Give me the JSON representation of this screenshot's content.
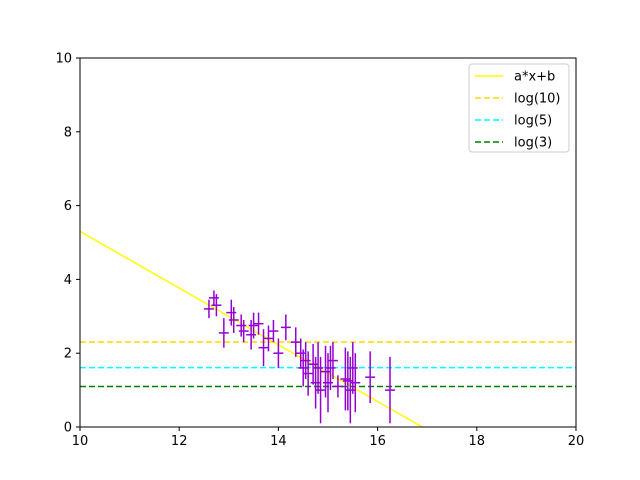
{
  "chart_data": {
    "type": "scatter",
    "title": "",
    "xlabel": "",
    "ylabel": "",
    "xlim": [
      10,
      20
    ],
    "ylim": [
      0,
      10
    ],
    "x_ticks": [
      10,
      12,
      14,
      16,
      18,
      20
    ],
    "y_ticks": [
      0,
      2,
      4,
      6,
      8,
      10
    ],
    "grid": false,
    "legend_position": "top-right",
    "lines": [
      {
        "name": "a*x+b",
        "color": "#ffff00",
        "style": "solid",
        "points": [
          [
            10,
            5.3
          ],
          [
            16.9,
            0
          ]
        ]
      },
      {
        "name": "log(10)",
        "color": "#ffd700",
        "style": "dashed",
        "y": 2.303
      },
      {
        "name": "log(5)",
        "color": "#00ffff",
        "style": "dashed",
        "y": 1.609
      },
      {
        "name": "log(3)",
        "color": "#008000",
        "style": "dashed",
        "y": 1.099
      }
    ],
    "series": [
      {
        "marker_color": "#9400d3",
        "points": [
          {
            "x": 12.6,
            "y": 3.2,
            "xerr": 0.1,
            "yerr": 0.25
          },
          {
            "x": 12.7,
            "y": 3.5,
            "xerr": 0.1,
            "yerr": 0.2
          },
          {
            "x": 12.75,
            "y": 3.3,
            "xerr": 0.1,
            "yerr": 0.3
          },
          {
            "x": 12.9,
            "y": 2.55,
            "xerr": 0.1,
            "yerr": 0.4
          },
          {
            "x": 13.05,
            "y": 3.1,
            "xerr": 0.1,
            "yerr": 0.35
          },
          {
            "x": 13.1,
            "y": 2.9,
            "xerr": 0.1,
            "yerr": 0.35
          },
          {
            "x": 13.25,
            "y": 2.75,
            "xerr": 0.1,
            "yerr": 0.3
          },
          {
            "x": 13.3,
            "y": 2.6,
            "xerr": 0.1,
            "yerr": 0.3
          },
          {
            "x": 13.45,
            "y": 2.5,
            "xerr": 0.1,
            "yerr": 0.4
          },
          {
            "x": 13.5,
            "y": 2.75,
            "xerr": 0.1,
            "yerr": 0.35
          },
          {
            "x": 13.6,
            "y": 2.8,
            "xerr": 0.1,
            "yerr": 0.3
          },
          {
            "x": 13.7,
            "y": 2.15,
            "xerr": 0.1,
            "yerr": 0.5
          },
          {
            "x": 13.8,
            "y": 2.4,
            "xerr": 0.1,
            "yerr": 0.35
          },
          {
            "x": 13.9,
            "y": 2.6,
            "xerr": 0.1,
            "yerr": 0.3
          },
          {
            "x": 14.0,
            "y": 2.0,
            "xerr": 0.1,
            "yerr": 0.4
          },
          {
            "x": 14.15,
            "y": 2.7,
            "xerr": 0.1,
            "yerr": 0.35
          },
          {
            "x": 14.35,
            "y": 2.3,
            "xerr": 0.1,
            "yerr": 0.4
          },
          {
            "x": 14.45,
            "y": 2.0,
            "xerr": 0.1,
            "yerr": 0.4
          },
          {
            "x": 14.5,
            "y": 1.6,
            "xerr": 0.1,
            "yerr": 0.5
          },
          {
            "x": 14.55,
            "y": 1.8,
            "xerr": 0.1,
            "yerr": 0.5
          },
          {
            "x": 14.6,
            "y": 1.45,
            "xerr": 0.1,
            "yerr": 0.6
          },
          {
            "x": 14.7,
            "y": 1.7,
            "xerr": 0.1,
            "yerr": 0.55
          },
          {
            "x": 14.75,
            "y": 1.2,
            "xerr": 0.1,
            "yerr": 0.7
          },
          {
            "x": 14.8,
            "y": 1.6,
            "xerr": 0.1,
            "yerr": 0.7
          },
          {
            "x": 14.85,
            "y": 1.0,
            "xerr": 0.1,
            "yerr": 0.9
          },
          {
            "x": 14.95,
            "y": 1.5,
            "xerr": 0.1,
            "yerr": 0.7
          },
          {
            "x": 15.0,
            "y": 1.2,
            "xerr": 0.1,
            "yerr": 0.8
          },
          {
            "x": 15.05,
            "y": 1.6,
            "xerr": 0.1,
            "yerr": 0.6
          },
          {
            "x": 15.1,
            "y": 1.8,
            "xerr": 0.1,
            "yerr": 0.5
          },
          {
            "x": 15.2,
            "y": 1.1,
            "xerr": 0.1,
            "yerr": 0.3
          },
          {
            "x": 15.35,
            "y": 1.3,
            "xerr": 0.1,
            "yerr": 0.85
          },
          {
            "x": 15.4,
            "y": 1.25,
            "xerr": 0.1,
            "yerr": 0.8
          },
          {
            "x": 15.45,
            "y": 1.0,
            "xerr": 0.1,
            "yerr": 0.9
          },
          {
            "x": 15.5,
            "y": 1.6,
            "xerr": 0.1,
            "yerr": 0.7
          },
          {
            "x": 15.55,
            "y": 1.2,
            "xerr": 0.1,
            "yerr": 0.8
          },
          {
            "x": 15.85,
            "y": 1.35,
            "xerr": 0.1,
            "yerr": 0.7
          },
          {
            "x": 16.25,
            "y": 1.0,
            "xerr": 0.1,
            "yerr": 0.9
          }
        ]
      }
    ]
  }
}
